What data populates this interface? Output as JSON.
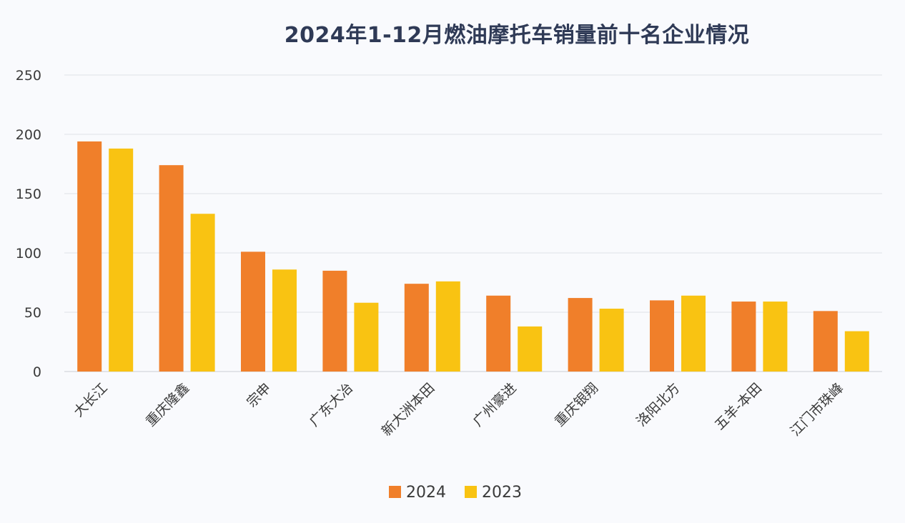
{
  "chart_data": {
    "type": "bar",
    "title": "2024年1-12月燃油摩托车销量前十名企业情况",
    "categories": [
      "大长江",
      "重庆隆鑫",
      "宗申",
      "广东大冶",
      "新大洲本田",
      "广州豪进",
      "重庆银翔",
      "洛阳北方",
      "五羊-本田",
      "江门市珠峰"
    ],
    "series": [
      {
        "name": "2024",
        "color": "#f07f2a",
        "values": [
          194,
          174,
          101,
          85,
          74,
          64,
          62,
          60,
          59,
          51
        ]
      },
      {
        "name": "2023",
        "color": "#f9c312",
        "values": [
          188,
          133,
          86,
          58,
          76,
          38,
          53,
          64,
          59,
          34
        ]
      }
    ],
    "ylim": [
      0,
      250
    ],
    "yticks": [
      0,
      50,
      100,
      150,
      200,
      250
    ],
    "grid": true,
    "legend_position": "bottom"
  }
}
